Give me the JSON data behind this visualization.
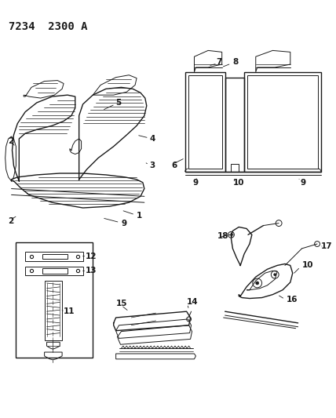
{
  "title": "7234  2300 A",
  "bg_color": "#ffffff",
  "line_color": "#1a1a1a",
  "title_fontsize": 10,
  "label_fontsize": 7.5,
  "figsize": [
    4.28,
    5.33
  ],
  "dpi": 100
}
